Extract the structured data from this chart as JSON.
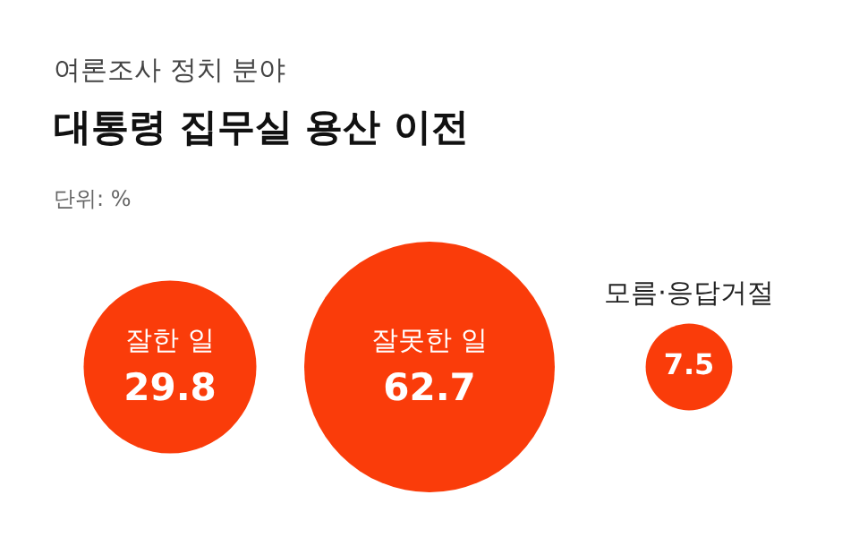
{
  "chart_data": {
    "type": "other",
    "subtitle": "여론조사 정치 분야",
    "title": "대통령 집무실 용산 이전",
    "annotations": [
      "단위: %"
    ],
    "categories": [
      "잘한 일",
      "잘못한 일",
      "모름·응답거절"
    ],
    "values": [
      29.8,
      62.7,
      7.5
    ],
    "colors": [
      "#fa3c0a",
      "#fa3c0a",
      "#fa3c0a"
    ],
    "data_labels": true
  }
}
